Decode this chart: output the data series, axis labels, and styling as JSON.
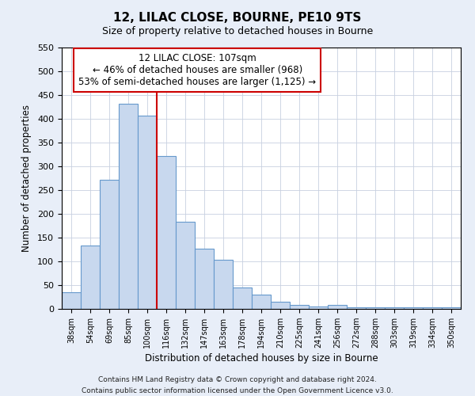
{
  "title": "12, LILAC CLOSE, BOURNE, PE10 9TS",
  "subtitle": "Size of property relative to detached houses in Bourne",
  "xlabel": "Distribution of detached houses by size in Bourne",
  "ylabel": "Number of detached properties",
  "bar_labels": [
    "38sqm",
    "54sqm",
    "69sqm",
    "85sqm",
    "100sqm",
    "116sqm",
    "132sqm",
    "147sqm",
    "163sqm",
    "178sqm",
    "194sqm",
    "210sqm",
    "225sqm",
    "241sqm",
    "256sqm",
    "272sqm",
    "288sqm",
    "303sqm",
    "319sqm",
    "334sqm",
    "350sqm"
  ],
  "bar_values": [
    35,
    133,
    272,
    432,
    406,
    322,
    183,
    127,
    103,
    45,
    30,
    15,
    8,
    5,
    8,
    4,
    3,
    3,
    4,
    4,
    4
  ],
  "bar_color": "#c8d8ee",
  "bar_edge_color": "#6699cc",
  "vline_x_idx": 4.5,
  "vline_color": "#cc0000",
  "annotation_line1": "12 LILAC CLOSE: 107sqm",
  "annotation_line2": "← 46% of detached houses are smaller (968)",
  "annotation_line3": "53% of semi-detached houses are larger (1,125) →",
  "annotation_box_color": "white",
  "annotation_box_edge": "#cc0000",
  "ylim": [
    0,
    550
  ],
  "yticks": [
    0,
    50,
    100,
    150,
    200,
    250,
    300,
    350,
    400,
    450,
    500,
    550
  ],
  "footer1": "Contains HM Land Registry data © Crown copyright and database right 2024.",
  "footer2": "Contains public sector information licensed under the Open Government Licence v3.0.",
  "fig_bg_color": "#e8eef8",
  "plot_bg_color": "#ffffff",
  "grid_color": "#c8d0e0"
}
